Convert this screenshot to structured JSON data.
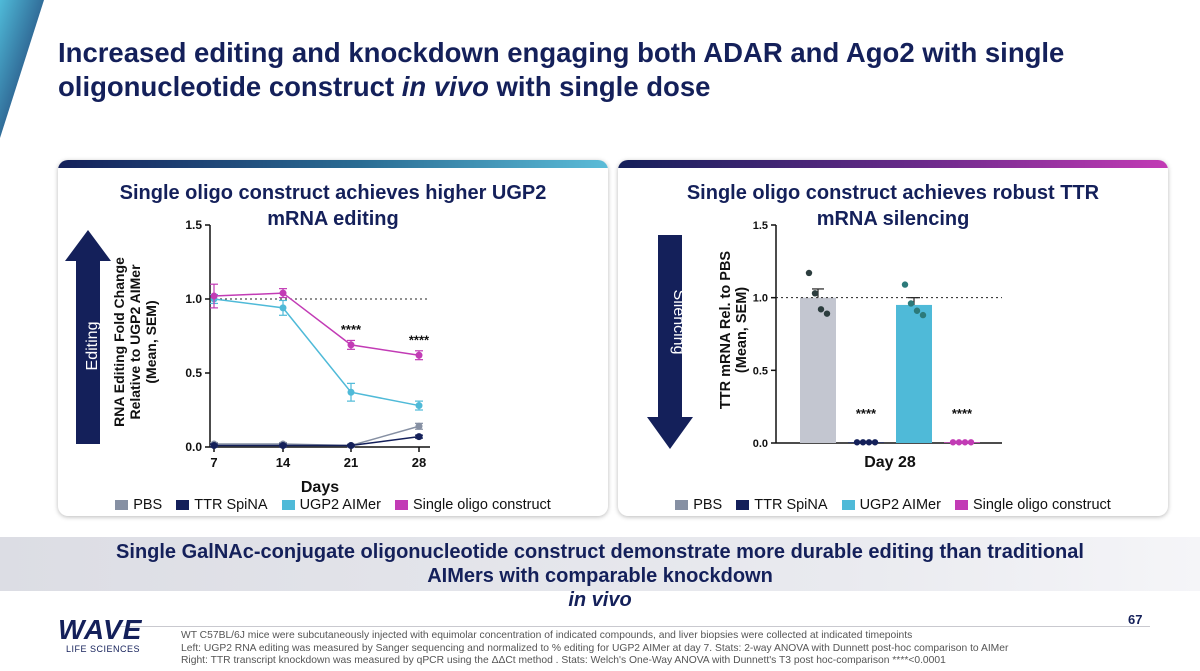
{
  "slide": {
    "title_part1": "Increased editing and knockdown engaging both ADAR and Ago2 with single oligonucleotide construct ",
    "title_italic": "in vivo",
    "title_part2": " with single dose",
    "page_number": "67"
  },
  "left_panel": {
    "title_line1": "Single oligo construct achieves higher UGP2",
    "title_line2": "mRNA editing",
    "arrow_label": "Editing"
  },
  "right_panel": {
    "title_line1": "Single oligo construct achieves robust TTR",
    "title_line2": "mRNA silencing",
    "arrow_label": "Silencing"
  },
  "legend": [
    {
      "label": "PBS",
      "color": "#8690a3"
    },
    {
      "label": "TTR SpiNA",
      "color": "#14205a"
    },
    {
      "label": "UGP2 AIMer",
      "color": "#4fbad8"
    },
    {
      "label": "Single oligo construct",
      "color": "#c23bb5"
    }
  ],
  "chart_data": [
    {
      "type": "line",
      "title": "Single oligo construct achieves higher UGP2 mRNA editing",
      "xlabel": "Days",
      "ylabel_line1": "RNA Editing Fold Change",
      "ylabel_line2": "Relative to UGP2 AIMer",
      "ylabel_line3": "(Mean, SEM)",
      "x": [
        7,
        14,
        21,
        28
      ],
      "x_tick_labels": [
        "7",
        "14",
        "21",
        "28"
      ],
      "ylim": [
        0,
        1.5
      ],
      "y_ticks": [
        0,
        0.5,
        1.0,
        1.5
      ],
      "y_tick_labels": [
        "0.0",
        "0.5",
        "1.0",
        "1.5"
      ],
      "reference_line": 1.0,
      "series": [
        {
          "name": "PBS",
          "color": "#8690a3",
          "values": [
            0.02,
            0.02,
            0.01,
            0.14
          ],
          "sem": [
            0.01,
            0.01,
            0.01,
            0.02
          ]
        },
        {
          "name": "TTR SpiNA",
          "color": "#14205a",
          "values": [
            0.01,
            0.01,
            0.01,
            0.07
          ],
          "sem": [
            0.01,
            0.01,
            0.005,
            0.01
          ]
        },
        {
          "name": "UGP2 AIMer",
          "color": "#4fbad8",
          "values": [
            1.0,
            0.94,
            0.37,
            0.28
          ],
          "sem": [
            0.03,
            0.05,
            0.06,
            0.03
          ]
        },
        {
          "name": "Single oligo construct",
          "color": "#c23bb5",
          "values": [
            1.02,
            1.04,
            0.69,
            0.62
          ],
          "sem": [
            0.08,
            0.03,
            0.03,
            0.03
          ]
        }
      ],
      "annotations": [
        {
          "x": 21,
          "y": 0.79,
          "text": "****"
        },
        {
          "x": 28,
          "y": 0.72,
          "text": "****"
        }
      ]
    },
    {
      "type": "bar",
      "title": "Single oligo construct achieves robust TTR mRNA silencing",
      "xlabel": "Day 28",
      "ylabel_line1": "TTR mRNA Rel. to PBS",
      "ylabel_line2": "(Mean, SEM)",
      "ylim": [
        0,
        1.5
      ],
      "y_ticks": [
        0,
        0.5,
        1.0,
        1.5
      ],
      "y_tick_labels": [
        "0.0",
        "0.5",
        "1.0",
        "1.5"
      ],
      "reference_line": 1.0,
      "series": [
        {
          "name": "PBS",
          "color": "#c3c6d0",
          "dot_color": "#2c3d3e",
          "value": 1.0,
          "sem": 0.06,
          "points": [
            1.17,
            1.03,
            0.92,
            0.89
          ]
        },
        {
          "name": "TTR SpiNA",
          "color": "#14205a",
          "dot_color": "#14205a",
          "value": 0.005,
          "sem": 0.003,
          "points": [
            0.005,
            0.005,
            0.005,
            0.005
          ]
        },
        {
          "name": "UGP2 AIMer",
          "color": "#4fbad8",
          "dot_color": "#2c7a7a",
          "value": 0.95,
          "sem": 0.05,
          "points": [
            1.09,
            0.96,
            0.91,
            0.88
          ]
        },
        {
          "name": "Single oligo construct",
          "color": "#c23bb5",
          "dot_color": "#c23bb5",
          "value": 0.005,
          "sem": 0.003,
          "points": [
            0.005,
            0.005,
            0.005,
            0.005
          ]
        }
      ],
      "annotations": [
        {
          "bar": 1,
          "y": 0.2,
          "text": "****"
        },
        {
          "bar": 3,
          "y": 0.2,
          "text": "****"
        }
      ]
    }
  ],
  "conclusion": {
    "line1": "Single GalNAc-conjugate oligonucleotide construct demonstrate more durable editing than traditional",
    "line2_part1": "AIMers with comparable knockdown ",
    "line2_italic": "in vivo"
  },
  "logo": {
    "word": "WAVE",
    "sub": "LIFE SCIENCES"
  },
  "footnotes": [
    "WT C57BL/6J mice were subcutaneously injected with equimolar concentration of indicated compounds, and liver biopsies were collected at indicated timepoints",
    "Left: UGP2 RNA editing was measured by Sanger sequencing and normalized to % editing for UGP2 AIMer at day 7. Stats: 2-way ANOVA with Dunnett post-hoc comparison to AIMer",
    "Right: TTR transcript knockdown was measured by qPCR using the ΔΔCt method . Stats: Welch's One-Way ANOVA with Dunnett's T3 post hoc-comparison ****<0.0001"
  ]
}
